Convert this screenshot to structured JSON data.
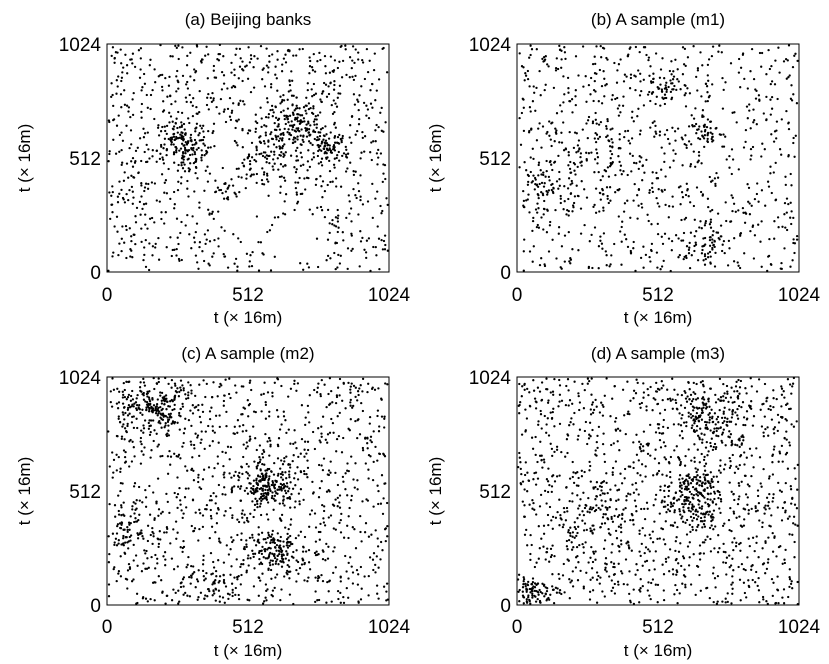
{
  "chart_data": [
    {
      "type": "scatter",
      "title": "(a) Beijing banks",
      "xlabel": "t (× 16m)",
      "ylabel": "t (× 16m)",
      "xlim": [
        0,
        1024
      ],
      "ylim": [
        0,
        1024
      ],
      "xticks": [
        "0",
        "512",
        "1024"
      ],
      "yticks": [
        "0",
        "512",
        "1024"
      ],
      "point_count_approx": 1400,
      "clusters": [
        {
          "x": 280,
          "y": 560,
          "spread": 45,
          "weight": 0.08
        },
        {
          "x": 690,
          "y": 660,
          "spread": 55,
          "weight": 0.07
        },
        {
          "x": 810,
          "y": 560,
          "spread": 35,
          "weight": 0.05
        },
        {
          "x": 570,
          "y": 540,
          "spread": 60,
          "weight": 0.05
        }
      ],
      "empty_regions": [
        {
          "x": 450,
          "y": 560,
          "r": 70
        },
        {
          "x": 510,
          "y": 250,
          "r": 90
        },
        {
          "x": 700,
          "y": 150,
          "r": 110
        }
      ]
    },
    {
      "type": "scatter",
      "title": "(b) A sample (m1)",
      "xlabel": "t (× 16m)",
      "ylabel": "t (× 16m)",
      "xlim": [
        0,
        1024
      ],
      "ylim": [
        0,
        1024
      ],
      "xticks": [
        "0",
        "512",
        "1024"
      ],
      "yticks": [
        "0",
        "512",
        "1024"
      ],
      "point_count_approx": 1100,
      "clusters": [
        {
          "x": 680,
          "y": 620,
          "spread": 35,
          "weight": 0.05
        },
        {
          "x": 110,
          "y": 390,
          "spread": 45,
          "weight": 0.05
        },
        {
          "x": 700,
          "y": 130,
          "spread": 50,
          "weight": 0.06
        },
        {
          "x": 530,
          "y": 830,
          "spread": 40,
          "weight": 0.03
        },
        {
          "x": 330,
          "y": 530,
          "spread": 70,
          "weight": 0.04
        }
      ],
      "empty_regions": []
    },
    {
      "type": "scatter",
      "title": "(c) A sample (m2)",
      "xlabel": "t (× 16m)",
      "ylabel": "t (× 16m)",
      "xlim": [
        0,
        1024
      ],
      "ylim": [
        0,
        1024
      ],
      "xticks": [
        "0",
        "512",
        "1024"
      ],
      "yticks": [
        "0",
        "512",
        "1024"
      ],
      "point_count_approx": 1700,
      "clusters": [
        {
          "x": 580,
          "y": 540,
          "spread": 60,
          "weight": 0.12
        },
        {
          "x": 600,
          "y": 250,
          "spread": 50,
          "weight": 0.08
        },
        {
          "x": 170,
          "y": 890,
          "spread": 80,
          "weight": 0.12
        },
        {
          "x": 60,
          "y": 340,
          "spread": 50,
          "weight": 0.04
        },
        {
          "x": 380,
          "y": 100,
          "spread": 60,
          "weight": 0.03
        }
      ],
      "empty_regions": []
    },
    {
      "type": "scatter",
      "title": "(d) A sample (m3)",
      "xlabel": "t (× 16m)",
      "ylabel": "t (× 16m)",
      "xlim": [
        0,
        1024
      ],
      "ylim": [
        0,
        1024
      ],
      "xticks": [
        "0",
        "512",
        "1024"
      ],
      "yticks": [
        "0",
        "512",
        "1024"
      ],
      "point_count_approx": 1700,
      "clusters": [
        {
          "x": 650,
          "y": 490,
          "spread": 60,
          "weight": 0.1
        },
        {
          "x": 700,
          "y": 850,
          "spread": 70,
          "weight": 0.09
        },
        {
          "x": 60,
          "y": 60,
          "spread": 35,
          "weight": 0.04
        },
        {
          "x": 300,
          "y": 400,
          "spread": 80,
          "weight": 0.04
        }
      ],
      "empty_regions": []
    }
  ]
}
